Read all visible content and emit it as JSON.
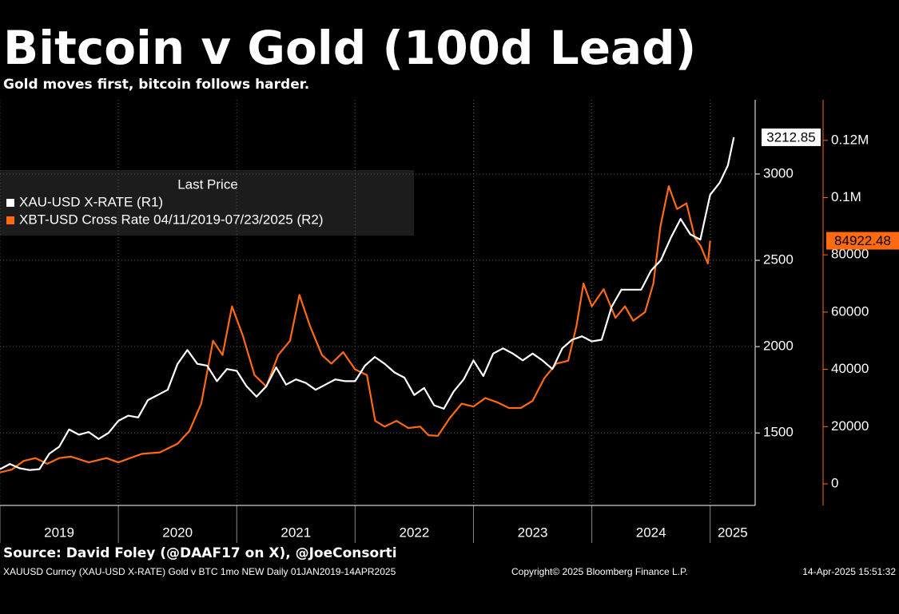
{
  "chart_data": {
    "type": "line",
    "title": "Bitcoin v Gold (100d Lead)",
    "subtitle": "Gold moves first, bitcoin follows harder.",
    "legend_title": "Last Price",
    "legend_position": "upper left",
    "grid": true,
    "source": "Source: David Foley (@DAAF17 on X), @JoeConsorti",
    "footer_left": "XAUUSD Curncy (XAU-USD X-RATE) Gold v BTC 1mo NEW  Daily 01JAN2019-14APR2025",
    "footer_center": "Copyright© 2025 Bloomberg Finance L.P.",
    "footer_right": "14-Apr-2025 15:51:32",
    "xlim": [
      2019,
      2025.38
    ],
    "xticks": [
      2019,
      2020,
      2021,
      2022,
      2023,
      2024,
      2025
    ],
    "ylim": [
      1080,
      3430
    ],
    "yticks": [
      1500,
      2000,
      2500,
      3000
    ],
    "y2lim": [
      -7530,
      134170
    ],
    "y2ticks": [
      0,
      20000,
      40000,
      60000,
      80000,
      {
        "value": 100000,
        "label": "0.1M"
      },
      {
        "value": 120000,
        "label": "0.12M"
      }
    ],
    "series": [
      {
        "name": "XAU-USD X-RATE  (R1)",
        "color": "#ffffff",
        "axis": "y",
        "x": [
          2019.0,
          2019.083,
          2019.167,
          2019.25,
          2019.333,
          2019.417,
          2019.5,
          2019.583,
          2019.667,
          2019.75,
          2019.833,
          2019.917,
          2020.0,
          2020.083,
          2020.167,
          2020.25,
          2020.333,
          2020.417,
          2020.5,
          2020.583,
          2020.667,
          2020.75,
          2020.833,
          2020.917,
          2021.0,
          2021.083,
          2021.167,
          2021.25,
          2021.333,
          2021.417,
          2021.5,
          2021.583,
          2021.667,
          2021.75,
          2021.833,
          2021.917,
          2022.0,
          2022.083,
          2022.167,
          2022.25,
          2022.333,
          2022.417,
          2022.5,
          2022.583,
          2022.667,
          2022.75,
          2022.833,
          2022.917,
          2023.0,
          2023.083,
          2023.167,
          2023.25,
          2023.333,
          2023.417,
          2023.5,
          2023.583,
          2023.667,
          2023.75,
          2023.833,
          2023.917,
          2024.0,
          2024.083,
          2024.167,
          2024.25,
          2024.333,
          2024.417,
          2024.5,
          2024.583,
          2024.667,
          2024.75,
          2024.833,
          2024.917,
          2025.0,
          2025.08,
          2025.15,
          2025.2
        ],
        "values": [
          1290,
          1320,
          1295,
          1285,
          1290,
          1380,
          1420,
          1520,
          1490,
          1505,
          1465,
          1500,
          1570,
          1600,
          1590,
          1690,
          1720,
          1750,
          1900,
          1980,
          1900,
          1890,
          1800,
          1870,
          1860,
          1770,
          1710,
          1770,
          1880,
          1780,
          1810,
          1790,
          1750,
          1780,
          1810,
          1800,
          1800,
          1890,
          1940,
          1900,
          1850,
          1820,
          1720,
          1760,
          1660,
          1640,
          1740,
          1810,
          1920,
          1830,
          1960,
          1990,
          1960,
          1920,
          1960,
          1920,
          1870,
          1990,
          2040,
          2060,
          2030,
          2040,
          2230,
          2330,
          2330,
          2330,
          2440,
          2500,
          2630,
          2740,
          2650,
          2620,
          2880,
          2950,
          3050,
          3212.85
        ]
      },
      {
        "name": "XBT-USD Cross Rate 04/11/2019-07/23/2025  (R2)",
        "color": "#ff6a13",
        "axis": "y2",
        "x": [
          2019.0,
          2019.1,
          2019.2,
          2019.3,
          2019.4,
          2019.5,
          2019.6,
          2019.75,
          2019.9,
          2020.0,
          2020.1,
          2020.2,
          2020.35,
          2020.5,
          2020.6,
          2020.7,
          2020.8,
          2020.88,
          2020.96,
          2021.05,
          2021.15,
          2021.25,
          2021.35,
          2021.45,
          2021.53,
          2021.62,
          2021.72,
          2021.8,
          2021.9,
          2022.0,
          2022.1,
          2022.17,
          2022.25,
          2022.35,
          2022.45,
          2022.55,
          2022.62,
          2022.7,
          2022.8,
          2022.9,
          2023.0,
          2023.1,
          2023.2,
          2023.3,
          2023.4,
          2023.5,
          2023.6,
          2023.7,
          2023.8,
          2023.87,
          2023.93,
          2024.0,
          2024.1,
          2024.2,
          2024.28,
          2024.35,
          2024.45,
          2024.52,
          2024.58,
          2024.65,
          2024.72,
          2024.8,
          2024.87,
          2024.92,
          2024.98,
          2025.0
        ],
        "values": [
          4000,
          5000,
          8000,
          9000,
          7000,
          9000,
          9500,
          7500,
          9000,
          7500,
          9000,
          10500,
          11000,
          14000,
          18500,
          28000,
          50000,
          45000,
          62000,
          52000,
          38000,
          34000,
          45000,
          50000,
          66000,
          55000,
          45000,
          42000,
          46000,
          40000,
          38000,
          22000,
          20000,
          22000,
          19500,
          20000,
          17000,
          16800,
          23000,
          28000,
          27000,
          30000,
          28500,
          26500,
          26500,
          29000,
          37000,
          42000,
          43000,
          55000,
          70000,
          62000,
          68000,
          58000,
          62000,
          57000,
          60000,
          70000,
          90000,
          104000,
          96000,
          98000,
          86000,
          83000,
          77000,
          84922.48
        ]
      }
    ]
  }
}
